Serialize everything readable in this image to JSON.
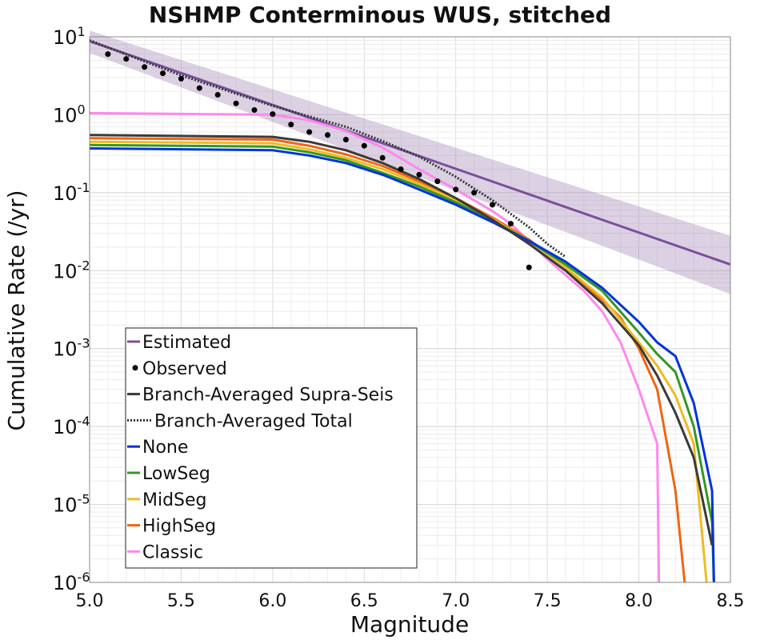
{
  "chart_data": {
    "type": "line",
    "title": "NSHMP Conterminous WUS, stitched",
    "xlabel": "Magnitude",
    "ylabel": "Cumulative Rate (/yr)",
    "xlim": [
      5.0,
      8.5
    ],
    "ylim": [
      1e-06,
      10
    ],
    "yscale": "log",
    "grid": true,
    "x_ticks": [
      "5.0",
      "5.5",
      "6.0",
      "6.5",
      "7.0",
      "7.5",
      "8.0",
      "8.5"
    ],
    "y_ticks": [
      {
        "base": "10",
        "exp": "1",
        "value": 10
      },
      {
        "base": "10",
        "exp": "0",
        "value": 1
      },
      {
        "base": "10",
        "exp": "-1",
        "value": 0.1
      },
      {
        "base": "10",
        "exp": "-2",
        "value": 0.01
      },
      {
        "base": "10",
        "exp": "-3",
        "value": 0.001
      },
      {
        "base": "10",
        "exp": "-4",
        "value": 0.0001
      },
      {
        "base": "10",
        "exp": "-5",
        "value": 1e-05
      },
      {
        "base": "10",
        "exp": "-6",
        "value": 1e-06
      }
    ],
    "legend_position": "lower-left",
    "band": {
      "of_series": "Estimated",
      "color": "#9b7bb0",
      "opacity": 0.35,
      "x": [
        5.0,
        8.5
      ],
      "lower": [
        6.2,
        0.005
      ],
      "upper": [
        12.0,
        0.028
      ]
    },
    "series": [
      {
        "name": "Estimated",
        "color": "#7a4f9b",
        "width": 3,
        "style": "solid",
        "x": [
          5.0,
          8.5
        ],
        "y": [
          8.8,
          0.012
        ]
      },
      {
        "name": "Observed",
        "color": "#000000",
        "style": "points",
        "x": [
          5.1,
          5.2,
          5.3,
          5.4,
          5.5,
          5.6,
          5.7,
          5.8,
          5.9,
          6.0,
          6.1,
          6.2,
          6.3,
          6.4,
          6.5,
          6.6,
          6.7,
          6.8,
          6.9,
          7.0,
          7.1,
          7.2,
          7.3,
          7.4
        ],
        "y": [
          6.0,
          5.2,
          4.1,
          3.4,
          2.9,
          2.2,
          1.8,
          1.4,
          1.15,
          1.02,
          0.75,
          0.6,
          0.55,
          0.48,
          0.4,
          0.28,
          0.2,
          0.17,
          0.14,
          0.11,
          0.1,
          0.07,
          0.04,
          0.011
        ]
      },
      {
        "name": "Branch-Averaged Supra-Seis",
        "color": "#3a3a3a",
        "width": 3,
        "style": "solid",
        "x": [
          5.0,
          6.0,
          6.2,
          6.4,
          6.6,
          6.8,
          7.0,
          7.2,
          7.4,
          7.6,
          7.8,
          8.0,
          8.1,
          8.2,
          8.3,
          8.4
        ],
        "y": [
          0.55,
          0.52,
          0.45,
          0.35,
          0.24,
          0.15,
          0.085,
          0.045,
          0.022,
          0.01,
          0.0038,
          0.0011,
          0.00045,
          0.00015,
          4e-05,
          3e-06
        ]
      },
      {
        "name": "Branch-Averaged Total",
        "color": "#333333",
        "width": 3,
        "style": "dotted",
        "x": [
          5.0,
          5.5,
          6.0,
          6.2,
          6.4,
          6.6,
          6.8,
          7.0,
          7.2,
          7.4,
          7.5,
          7.6
        ],
        "y": [
          9.0,
          3.2,
          1.3,
          0.95,
          0.7,
          0.46,
          0.29,
          0.16,
          0.08,
          0.036,
          0.022,
          0.015
        ]
      },
      {
        "name": "None",
        "color": "#0033dd",
        "width": 3,
        "style": "solid",
        "x": [
          5.0,
          6.0,
          6.2,
          6.4,
          6.6,
          6.8,
          7.0,
          7.2,
          7.4,
          7.6,
          7.8,
          8.0,
          8.1,
          8.2,
          8.3,
          8.4,
          8.41
        ],
        "y": [
          0.37,
          0.35,
          0.3,
          0.24,
          0.17,
          0.11,
          0.07,
          0.042,
          0.024,
          0.013,
          0.006,
          0.0022,
          0.0012,
          0.0008,
          0.0002,
          1.5e-05,
          1e-06
        ]
      },
      {
        "name": "LowSeg",
        "color": "#339922",
        "width": 3,
        "style": "solid",
        "x": [
          5.0,
          6.0,
          6.2,
          6.4,
          6.6,
          6.8,
          7.0,
          7.2,
          7.4,
          7.6,
          7.8,
          8.0,
          8.1,
          8.2,
          8.3,
          8.4,
          8.41
        ],
        "y": [
          0.41,
          0.39,
          0.33,
          0.26,
          0.18,
          0.12,
          0.075,
          0.044,
          0.024,
          0.012,
          0.0055,
          0.0016,
          0.00085,
          0.0005,
          0.0001,
          6e-06,
          1e-06
        ]
      },
      {
        "name": "MidSeg",
        "color": "#eebb22",
        "width": 3,
        "style": "solid",
        "x": [
          5.0,
          6.0,
          6.2,
          6.4,
          6.6,
          6.8,
          7.0,
          7.2,
          7.4,
          7.6,
          7.8,
          8.0,
          8.1,
          8.2,
          8.3,
          8.37
        ],
        "y": [
          0.45,
          0.43,
          0.36,
          0.28,
          0.2,
          0.13,
          0.08,
          0.046,
          0.024,
          0.011,
          0.0045,
          0.0012,
          0.0006,
          0.00025,
          6e-05,
          1e-06
        ]
      },
      {
        "name": "HighSeg",
        "color": "#ee6611",
        "width": 3,
        "style": "solid",
        "x": [
          5.0,
          6.0,
          6.2,
          6.4,
          6.6,
          6.8,
          7.0,
          7.2,
          7.4,
          7.6,
          7.8,
          7.9,
          8.0,
          8.1,
          8.2,
          8.25
        ],
        "y": [
          0.5,
          0.48,
          0.4,
          0.31,
          0.22,
          0.14,
          0.085,
          0.048,
          0.025,
          0.011,
          0.0042,
          0.0025,
          0.001,
          0.0003,
          1.5e-05,
          1e-06
        ]
      },
      {
        "name": "Classic",
        "color": "#ff88ee",
        "width": 3,
        "style": "solid",
        "x": [
          5.0,
          6.0,
          6.2,
          6.4,
          6.6,
          6.8,
          7.0,
          7.2,
          7.3,
          7.5,
          7.7,
          7.8,
          7.9,
          8.0,
          8.1,
          8.11
        ],
        "y": [
          1.05,
          1.0,
          0.85,
          0.62,
          0.38,
          0.2,
          0.11,
          0.058,
          0.04,
          0.014,
          0.0055,
          0.003,
          0.0012,
          0.0003,
          6e-05,
          1e-06
        ]
      }
    ]
  }
}
